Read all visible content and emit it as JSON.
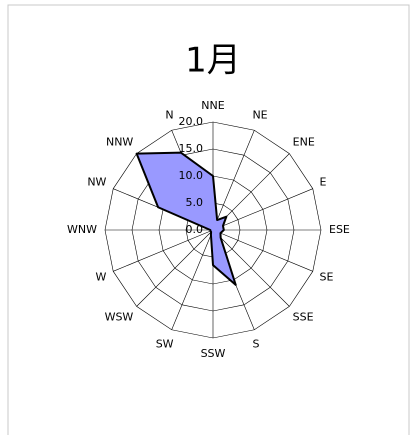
{
  "chart_data": {
    "type": "radar",
    "title": "1月",
    "categories": [
      "NNE",
      "NE",
      "ENE",
      "E",
      "ESE",
      "SE",
      "SSE",
      "S",
      "SSW",
      "SW",
      "WSW",
      "W",
      "WNW",
      "NW",
      "NNW",
      "N"
    ],
    "values": [
      10,
      2,
      3.5,
      2,
      2,
      1.5,
      2,
      11,
      6.5,
      1,
      0.5,
      0.5,
      0.5,
      11,
      20,
      15.5
    ],
    "color": "#9999ff",
    "ylim": [
      0,
      20
    ],
    "yticks": [
      {
        "value": 0,
        "label": "0.0"
      },
      {
        "value": 5,
        "label": "5.0"
      },
      {
        "value": 10,
        "label": "10.0"
      },
      {
        "value": 15,
        "label": "15.0"
      },
      {
        "value": 20,
        "label": "20.0"
      }
    ],
    "grid": true
  }
}
